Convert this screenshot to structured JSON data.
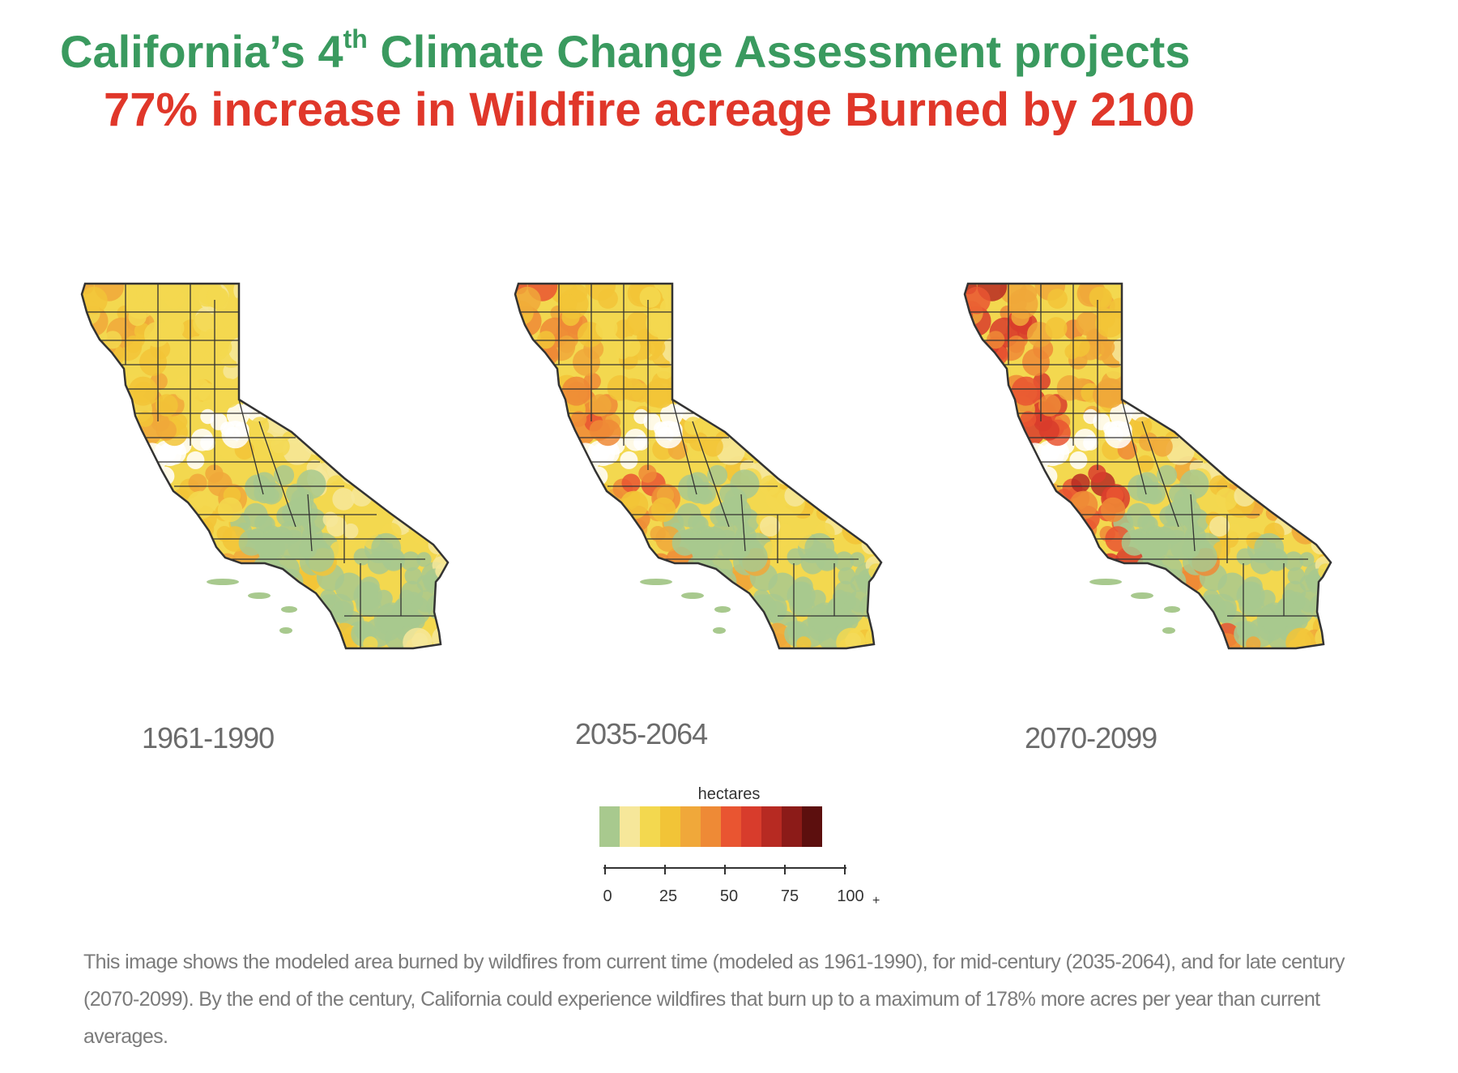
{
  "title": {
    "line1_pre": "California’s 4",
    "line1_sup": "th",
    "line1_post": " Climate Change Assessment projects",
    "line2": "77% increase in Wildfire acreage Burned by 2100"
  },
  "maps": [
    {
      "label": "1961-1990",
      "intensity": 0.25
    },
    {
      "label": "2035-2064",
      "intensity": 0.6
    },
    {
      "label": "2070-2099",
      "intensity": 1.0
    }
  ],
  "legend": {
    "title": "hectares",
    "colors": [
      "#a8c98e",
      "#f6e79a",
      "#f3d84f",
      "#f2c437",
      "#f0a83a",
      "#ee8a36",
      "#e95531",
      "#d83c2c",
      "#b72a22",
      "#8c1b18",
      "#5c0f0e"
    ],
    "ticks": [
      "0",
      "25",
      "50",
      "75",
      "100"
    ],
    "tick_values": [
      0,
      25,
      50,
      75,
      100
    ],
    "plus": "+"
  },
  "caption": "This image shows the modeled area burned by wildfires from current time (modeled as 1961-1990), for mid-century (2035-2064), and for late century (2070-2099). By the end of the century, California could experience wildfires that burn up to a maximum of 178% more acres per year than current averages.",
  "colors": {
    "title_green": "#3a9a5f",
    "title_red": "#e0372a",
    "land_green": "#a8c98e",
    "border": "#333333"
  }
}
